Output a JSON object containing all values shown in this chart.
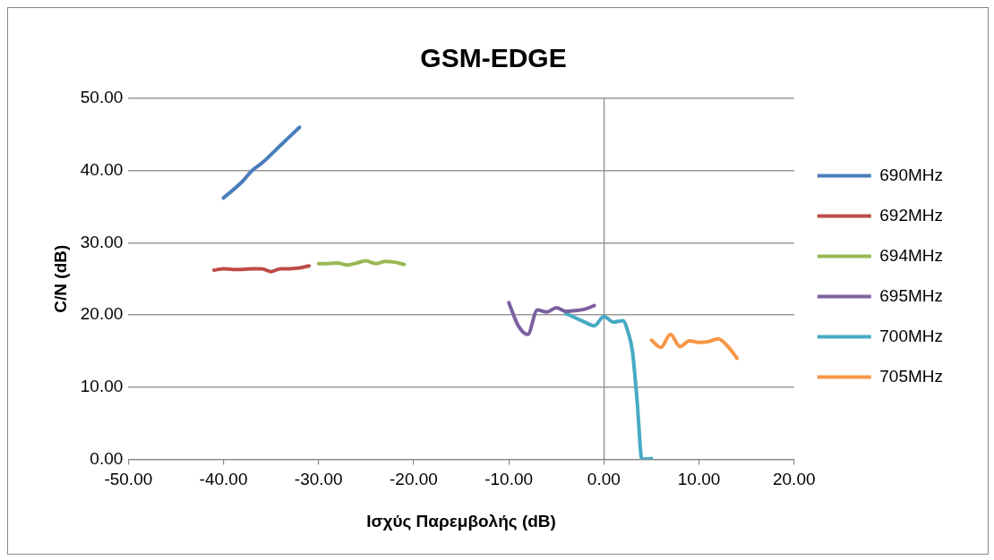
{
  "chart_data": {
    "type": "line",
    "title": "GSM-EDGE",
    "xlabel": "Ισχύς Παρεμβολής (dB)",
    "ylabel": "C/N (dB)",
    "xlim": [
      -50,
      20
    ],
    "ylim": [
      0,
      50
    ],
    "xticks": [
      {
        "value": -50,
        "label": "-50.00"
      },
      {
        "value": -40,
        "label": "-40.00"
      },
      {
        "value": -30,
        "label": "-30.00"
      },
      {
        "value": -20,
        "label": "-20.00"
      },
      {
        "value": -10,
        "label": "-10.00"
      },
      {
        "value": 0,
        "label": "0.00"
      },
      {
        "value": 10,
        "label": "10.00"
      },
      {
        "value": 20,
        "label": "20.00"
      }
    ],
    "yticks": [
      {
        "value": 0,
        "label": "0.00"
      },
      {
        "value": 10,
        "label": "10.00"
      },
      {
        "value": 20,
        "label": "20.00"
      },
      {
        "value": 30,
        "label": "30.00"
      },
      {
        "value": 40,
        "label": "40.00"
      },
      {
        "value": 50,
        "label": "50.00"
      }
    ],
    "grid": "y",
    "legend": "right",
    "marker": "none",
    "line_style": "solid",
    "series": [
      {
        "name": "690MHz",
        "color": "#4a7ebb",
        "x": [
          -40,
          -38,
          -37,
          -36,
          -34,
          -32
        ],
        "values": [
          36.2,
          38.5,
          40,
          41,
          43.5,
          46
        ]
      },
      {
        "name": "692MHz",
        "color": "#be4b48",
        "x": [
          -41,
          -40,
          -39,
          -38,
          -37,
          -36,
          -35,
          -34,
          -33,
          -32,
          -31
        ],
        "values": [
          26.2,
          26.4,
          26.3,
          26.3,
          26.4,
          26.4,
          26.0,
          26.4,
          26.4,
          26.5,
          26.8
        ]
      },
      {
        "name": "694MHz",
        "color": "#98b954",
        "x": [
          -30,
          -29,
          -28,
          -27,
          -26,
          -25,
          -24,
          -23,
          -22,
          -21
        ],
        "values": [
          27.1,
          27.1,
          27.2,
          26.9,
          27.2,
          27.5,
          27.1,
          27.4,
          27.3,
          27.0
        ]
      },
      {
        "name": "695MHz",
        "color": "#7d60a0",
        "x": [
          -10,
          -9,
          -8,
          -7,
          -6,
          -5,
          -4,
          -3,
          -2,
          -1
        ],
        "values": [
          21.7,
          18.5,
          17.3,
          20.7,
          20.4,
          21.0,
          20.5,
          20.6,
          20.8,
          21.3
        ]
      },
      {
        "name": "700MHz",
        "color": "#46aac5",
        "x": [
          -4,
          -3,
          -2,
          -1,
          0,
          1,
          2,
          2.5,
          3,
          3.5,
          4,
          5
        ],
        "values": [
          20.2,
          19.6,
          19.0,
          18.5,
          19.8,
          19.0,
          19.2,
          17.8,
          15,
          8,
          0,
          0.1
        ]
      },
      {
        "name": "705MHz",
        "color": "#f79646",
        "x": [
          5,
          6,
          7,
          8,
          9,
          10,
          11,
          12,
          13,
          14
        ],
        "values": [
          16.5,
          15.5,
          17.3,
          15.6,
          16.4,
          16.2,
          16.3,
          16.7,
          15.7,
          14.0
        ]
      }
    ]
  }
}
